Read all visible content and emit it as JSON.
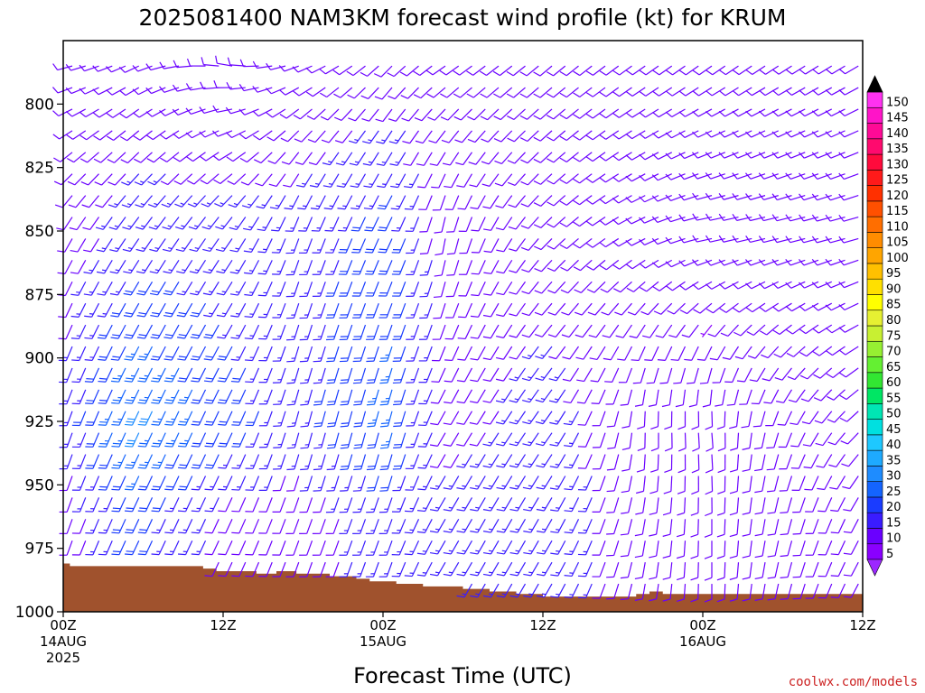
{
  "chart_data": {
    "type": "wind-barb-profile",
    "title": "2025081400 NAM3KM forecast wind profile (kt) for KRUM",
    "xlabel": "Forecast Time (UTC)",
    "credit": "coolwx.com/models",
    "ylim": [
      775,
      1000
    ],
    "y_ticks": [
      {
        "value": 800,
        "label": "800"
      },
      {
        "value": 825,
        "label": "825"
      },
      {
        "value": 850,
        "label": "850"
      },
      {
        "value": 875,
        "label": "875"
      },
      {
        "value": 900,
        "label": "900"
      },
      {
        "value": 925,
        "label": "925"
      },
      {
        "value": 950,
        "label": "950"
      },
      {
        "value": 975,
        "label": "975"
      },
      {
        "value": 1000,
        "label": "1000"
      }
    ],
    "xlim": [
      0,
      60
    ],
    "x_ticks": [
      {
        "hour": 0,
        "lines": [
          "00Z",
          "14AUG",
          "2025"
        ]
      },
      {
        "hour": 12,
        "lines": [
          "12Z"
        ]
      },
      {
        "hour": 24,
        "lines": [
          "00Z",
          "15AUG"
        ]
      },
      {
        "hour": 36,
        "lines": [
          "12Z"
        ]
      },
      {
        "hour": 48,
        "lines": [
          "00Z",
          "16AUG"
        ]
      },
      {
        "hour": 60,
        "lines": [
          "12Z"
        ]
      }
    ],
    "colorbar": {
      "labels": [
        "5",
        "10",
        "15",
        "20",
        "25",
        "30",
        "35",
        "40",
        "45",
        "50",
        "55",
        "60",
        "65",
        "70",
        "75",
        "80",
        "85",
        "90",
        "95",
        "100",
        "105",
        "110",
        "115",
        "120",
        "125",
        "130",
        "135",
        "140",
        "145",
        "150"
      ],
      "colors": [
        "#8a00ff",
        "#6a00ff",
        "#3a1cff",
        "#1a3cff",
        "#1464ff",
        "#1e8cff",
        "#1eaaff",
        "#1ec8ff",
        "#00e0e0",
        "#00e6b4",
        "#00e664",
        "#32e632",
        "#64f032",
        "#96f032",
        "#c8f032",
        "#e6f032",
        "#ffff00",
        "#ffe000",
        "#ffc000",
        "#ffa500",
        "#ff8c00",
        "#ff6e00",
        "#ff5000",
        "#ff3000",
        "#ff1a1a",
        "#ff0a3c",
        "#ff0a6e",
        "#ff0a96",
        "#ff14c8",
        "#ff32f0"
      ],
      "top_arrow_color": "#000000",
      "bottom_arrow_color": "#9c28ff"
    },
    "terrain": {
      "color": "#a0522d",
      "pressure": [
        {
          "hour": 0,
          "value": 981
        },
        {
          "hour": 0.5,
          "value": 982
        },
        {
          "hour": 10.5,
          "value": 983
        },
        {
          "hour": 11.5,
          "value": 984
        },
        {
          "hour": 14.5,
          "value": 985
        },
        {
          "hour": 15.5,
          "value": 985
        },
        {
          "hour": 16,
          "value": 984
        },
        {
          "hour": 17.5,
          "value": 985
        },
        {
          "hour": 20,
          "value": 986
        },
        {
          "hour": 22,
          "value": 987
        },
        {
          "hour": 23,
          "value": 988
        },
        {
          "hour": 25,
          "value": 989
        },
        {
          "hour": 27,
          "value": 990
        },
        {
          "hour": 30,
          "value": 991
        },
        {
          "hour": 32,
          "value": 992
        },
        {
          "hour": 34,
          "value": 993
        },
        {
          "hour": 36,
          "value": 994
        },
        {
          "hour": 40,
          "value": 994
        },
        {
          "hour": 43,
          "value": 993
        },
        {
          "hour": 44,
          "value": 992
        },
        {
          "hour": 45,
          "value": 993
        },
        {
          "hour": 60,
          "value": 993
        }
      ]
    },
    "wind_samples": [
      {
        "hour": 0,
        "pressure": 785,
        "dir": 255,
        "kt": 10
      },
      {
        "hour": 0,
        "pressure": 850,
        "dir": 210,
        "kt": 10
      },
      {
        "hour": 0,
        "pressure": 925,
        "dir": 200,
        "kt": 15
      },
      {
        "hour": 0,
        "pressure": 960,
        "dir": 200,
        "kt": 10
      },
      {
        "hour": 5,
        "pressure": 785,
        "dir": 245,
        "kt": 10
      },
      {
        "hour": 5,
        "pressure": 850,
        "dir": 215,
        "kt": 15
      },
      {
        "hour": 5,
        "pressure": 925,
        "dir": 205,
        "kt": 30
      },
      {
        "hour": 5,
        "pressure": 960,
        "dir": 205,
        "kt": 20
      },
      {
        "hour": 12,
        "pressure": 785,
        "dir": 280,
        "kt": 10
      },
      {
        "hour": 12,
        "pressure": 850,
        "dir": 215,
        "kt": 15
      },
      {
        "hour": 12,
        "pressure": 925,
        "dir": 205,
        "kt": 20
      },
      {
        "hour": 12,
        "pressure": 960,
        "dir": 205,
        "kt": 10
      },
      {
        "hour": 17,
        "pressure": 785,
        "dir": 250,
        "kt": 10
      },
      {
        "hour": 17,
        "pressure": 850,
        "dir": 200,
        "kt": 15
      },
      {
        "hour": 17,
        "pressure": 925,
        "dir": 195,
        "kt": 15
      },
      {
        "hour": 17,
        "pressure": 960,
        "dir": 200,
        "kt": 10
      },
      {
        "hour": 24,
        "pressure": 785,
        "dir": 225,
        "kt": 10
      },
      {
        "hour": 24,
        "pressure": 850,
        "dir": 205,
        "kt": 20
      },
      {
        "hour": 24,
        "pressure": 925,
        "dir": 195,
        "kt": 25
      },
      {
        "hour": 24,
        "pressure": 960,
        "dir": 200,
        "kt": 15
      },
      {
        "hour": 28,
        "pressure": 785,
        "dir": 235,
        "kt": 10
      },
      {
        "hour": 28,
        "pressure": 850,
        "dir": 190,
        "kt": 10
      },
      {
        "hour": 28,
        "pressure": 925,
        "dir": 210,
        "kt": 10
      },
      {
        "hour": 28,
        "pressure": 960,
        "dir": 210,
        "kt": 15
      },
      {
        "hour": 36,
        "pressure": 785,
        "dir": 230,
        "kt": 10
      },
      {
        "hour": 36,
        "pressure": 850,
        "dir": 225,
        "kt": 10
      },
      {
        "hour": 36,
        "pressure": 925,
        "dir": 215,
        "kt": 15
      },
      {
        "hour": 36,
        "pressure": 960,
        "dir": 210,
        "kt": 15
      },
      {
        "hour": 43,
        "pressure": 785,
        "dir": 235,
        "kt": 10
      },
      {
        "hour": 43,
        "pressure": 850,
        "dir": 245,
        "kt": 10
      },
      {
        "hour": 43,
        "pressure": 925,
        "dir": 180,
        "kt": 10
      },
      {
        "hour": 43,
        "pressure": 960,
        "dir": 190,
        "kt": 10
      },
      {
        "hour": 48,
        "pressure": 785,
        "dir": 235,
        "kt": 10
      },
      {
        "hour": 48,
        "pressure": 850,
        "dir": 260,
        "kt": 10
      },
      {
        "hour": 48,
        "pressure": 925,
        "dir": 175,
        "kt": 10
      },
      {
        "hour": 48,
        "pressure": 960,
        "dir": 180,
        "kt": 10
      },
      {
        "hour": 60,
        "pressure": 785,
        "dir": 240,
        "kt": 10
      },
      {
        "hour": 60,
        "pressure": 850,
        "dir": 255,
        "kt": 10
      },
      {
        "hour": 60,
        "pressure": 925,
        "dir": 230,
        "kt": 10
      },
      {
        "hour": 60,
        "pressure": 960,
        "dir": 210,
        "kt": 10
      }
    ]
  }
}
